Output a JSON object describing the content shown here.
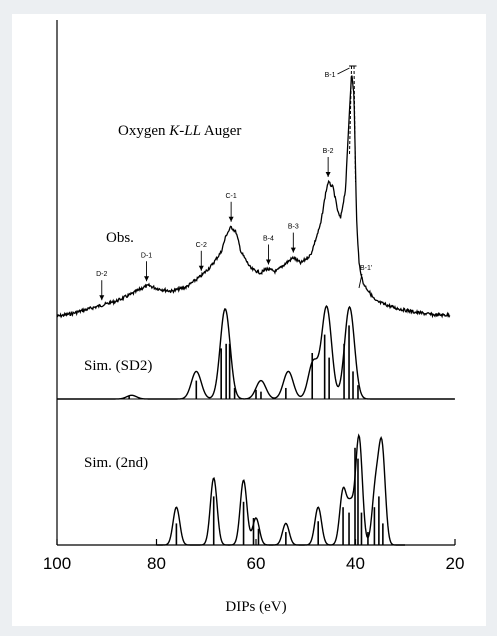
{
  "page": {
    "background": "#eceff2",
    "panel_background": "#ffffff"
  },
  "chart_data": {
    "type": "line",
    "title": "Oxygen K-LL Auger",
    "title_parts": {
      "prefix": "Oxygen ",
      "italic": "K-LL",
      "suffix": " Auger"
    },
    "xlabel": "DIPs (eV)",
    "ylabel": "",
    "xlim": [
      100,
      20
    ],
    "x_reversed": true,
    "x_ticks": [
      100,
      80,
      60,
      40,
      20
    ],
    "x_tick_labels": [
      "100",
      "80",
      "60",
      "40",
      "20"
    ],
    "grid": false,
    "line_color": "#000000",
    "series": [
      {
        "name": "Obs.",
        "kind": "observed",
        "points": [
          [
            100,
            0.04
          ],
          [
            97,
            0.06
          ],
          [
            94,
            0.09
          ],
          [
            91,
            0.12
          ],
          [
            88,
            0.15
          ],
          [
            85,
            0.2
          ],
          [
            82.5,
            0.25
          ],
          [
            81.5,
            0.26
          ],
          [
            80,
            0.24
          ],
          [
            77,
            0.22
          ],
          [
            74,
            0.25
          ],
          [
            71,
            0.33
          ],
          [
            69,
            0.4
          ],
          [
            67,
            0.5
          ],
          [
            66,
            0.62
          ],
          [
            65,
            0.68
          ],
          [
            64,
            0.64
          ],
          [
            63,
            0.5
          ],
          [
            61,
            0.38
          ],
          [
            59,
            0.35
          ],
          [
            58,
            0.38
          ],
          [
            56,
            0.36
          ],
          [
            54,
            0.42
          ],
          [
            52.5,
            0.46
          ],
          [
            51,
            0.42
          ],
          [
            49,
            0.48
          ],
          [
            47,
            0.7
          ],
          [
            46,
            0.92
          ],
          [
            45.5,
            1.0
          ],
          [
            44.5,
            0.96
          ],
          [
            43.5,
            0.78
          ],
          [
            43,
            0.74
          ],
          [
            42,
            0.95
          ],
          [
            41.3,
            1.45
          ],
          [
            40.8,
            1.78
          ],
          [
            40.3,
            1.62
          ],
          [
            39.8,
            0.75
          ],
          [
            39.3,
            0.42
          ],
          [
            38.5,
            0.28
          ],
          [
            36,
            0.15
          ],
          [
            32,
            0.1
          ],
          [
            28,
            0.07
          ],
          [
            24,
            0.05
          ],
          [
            21,
            0.05
          ]
        ]
      },
      {
        "name": "Sim. (SD2)",
        "kind": "simulated",
        "envelope": [
          [
            85,
            0.04
          ],
          [
            72,
            0.3
          ],
          [
            66.2,
            0.98
          ],
          [
            59,
            0.2
          ],
          [
            53.5,
            0.3
          ],
          [
            48.5,
            0.4
          ],
          [
            45.8,
            1.0
          ],
          [
            41.2,
            1.0
          ]
        ],
        "sticks": [
          [
            85.5,
            0.03
          ],
          [
            72,
            0.2
          ],
          [
            67,
            0.55
          ],
          [
            66,
            0.6
          ],
          [
            65.3,
            0.6
          ],
          [
            64.3,
            0.12
          ],
          [
            60,
            0.1
          ],
          [
            59,
            0.08
          ],
          [
            54,
            0.12
          ],
          [
            48.7,
            0.5
          ],
          [
            46.2,
            0.7
          ],
          [
            45.3,
            0.45
          ],
          [
            42.3,
            0.6
          ],
          [
            41.3,
            0.8
          ],
          [
            40.5,
            0.3
          ],
          [
            39.5,
            0.15
          ]
        ]
      },
      {
        "name": "Sim. (2nd)",
        "kind": "simulated",
        "envelope": [
          [
            76,
            0.35
          ],
          [
            68.5,
            0.62
          ],
          [
            62.5,
            0.6
          ],
          [
            60,
            0.25
          ],
          [
            54,
            0.2
          ],
          [
            47.5,
            0.35
          ],
          [
            42.5,
            0.5
          ],
          [
            41,
            0.35
          ],
          [
            39.3,
            1.0
          ],
          [
            36,
            0.5
          ],
          [
            34.7,
            0.9
          ]
        ],
        "sticks": [
          [
            76,
            0.2
          ],
          [
            68.5,
            0.45
          ],
          [
            62.5,
            0.4
          ],
          [
            60.5,
            0.25
          ],
          [
            59.5,
            0.15
          ],
          [
            54,
            0.12
          ],
          [
            47.5,
            0.22
          ],
          [
            42.5,
            0.35
          ],
          [
            41.3,
            0.3
          ],
          [
            40.1,
            0.9
          ],
          [
            39.5,
            0.8
          ],
          [
            38.8,
            0.3
          ],
          [
            37.5,
            0.12
          ],
          [
            36.2,
            0.35
          ],
          [
            35.3,
            0.45
          ],
          [
            34.5,
            0.2
          ]
        ]
      }
    ],
    "annotations": [
      {
        "label": "D-2",
        "x": 91
      },
      {
        "label": "D-1",
        "x": 82
      },
      {
        "label": "C-2",
        "x": 71
      },
      {
        "label": "C-1",
        "x": 65
      },
      {
        "label": "B-4",
        "x": 57.5
      },
      {
        "label": "B-3",
        "x": 52.5
      },
      {
        "label": "B-2",
        "x": 45.5
      },
      {
        "label": "B-1",
        "x": 40.8
      },
      {
        "label": "B-1'",
        "x": 39.5
      }
    ],
    "series_labels": {
      "observed": "Obs.",
      "sim_sd2": "Sim. (SD2)",
      "sim_2nd": "Sim. (2nd)"
    }
  }
}
